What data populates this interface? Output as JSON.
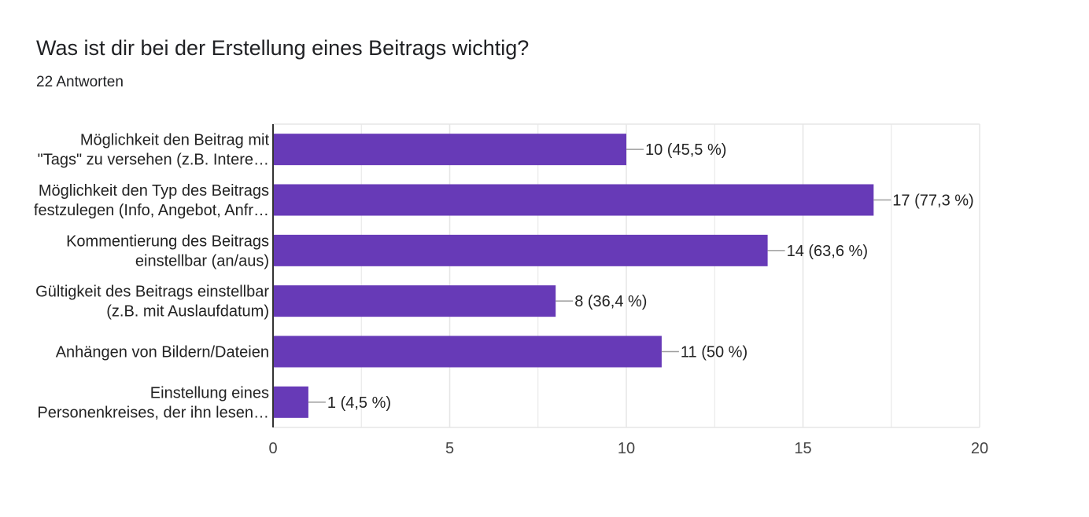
{
  "header": {
    "title": "Was ist dir bei der Erstellung eines Beitrags wichtig?",
    "response_count": "22 Antworten"
  },
  "chart_data": {
    "type": "bar",
    "orientation": "horizontal",
    "categories": [
      [
        "Möglichkeit den Beitrag mit",
        "\"Tags\" zu versehen (z.B. Intere…"
      ],
      [
        "Möglichkeit den Typ des Beitrags",
        "festzulegen (Info, Angebot, Anfr…"
      ],
      [
        "Kommentierung des Beitrags",
        "einstellbar (an/aus)"
      ],
      [
        "Gültigkeit des Beitrags einstellbar",
        "(z.B. mit Auslaufdatum)"
      ],
      [
        "Anhängen von Bildern/Dateien"
      ],
      [
        "Einstellung eines",
        "Personenkreises, der ihn lesen…"
      ]
    ],
    "values": [
      10,
      17,
      14,
      8,
      11,
      1
    ],
    "data_labels": [
      "10 (45,5 %)",
      "17 (77,3 %)",
      "14 (63,6 %)",
      "8 (36,4 %)",
      "11 (50 %)",
      "1 (4,5 %)"
    ],
    "xlim": [
      0,
      20
    ],
    "x_ticks": [
      0,
      5,
      10,
      15,
      20
    ],
    "x_tick_labels": [
      "0",
      "5",
      "10",
      "15",
      "20"
    ],
    "grid": true,
    "bar_color": "#673ab7",
    "grid_color": "#e6e6e6",
    "axis_color": "#333333",
    "text_color": "#222222"
  }
}
